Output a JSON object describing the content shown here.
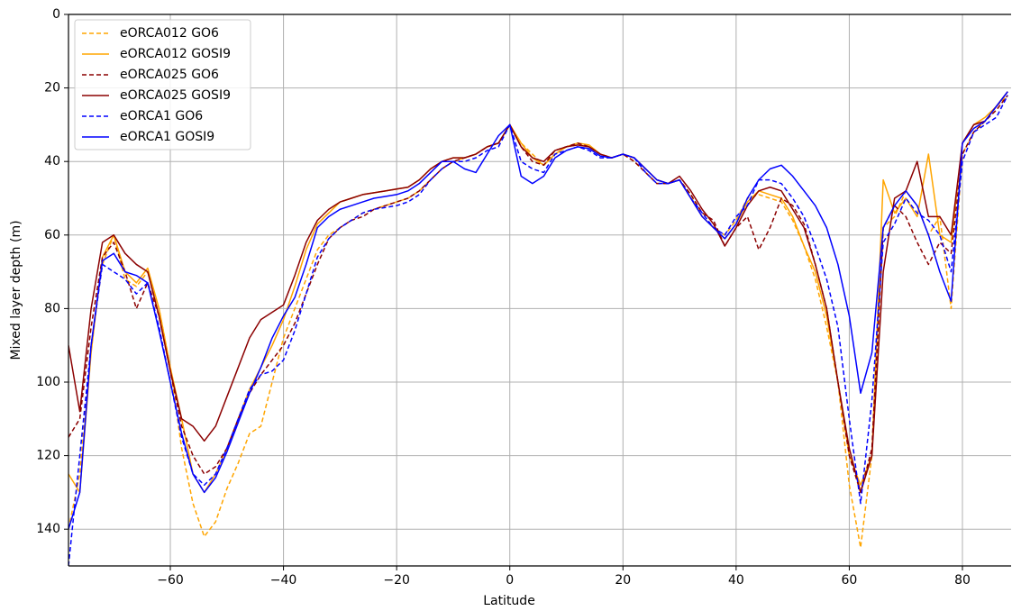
{
  "chart_data": {
    "type": "line",
    "xlabel": "Latitude",
    "ylabel": "Mixed layer depth (m)",
    "x": [
      -78,
      -76,
      -74,
      -72,
      -70,
      -68,
      -66,
      -64,
      -62,
      -60,
      -58,
      -56,
      -54,
      -52,
      -50,
      -48,
      -46,
      -44,
      -42,
      -40,
      -38,
      -36,
      -34,
      -32,
      -30,
      -28,
      -26,
      -24,
      -22,
      -20,
      -18,
      -16,
      -14,
      -12,
      -10,
      -8,
      -6,
      -4,
      -2,
      0,
      2,
      4,
      6,
      8,
      10,
      12,
      14,
      16,
      18,
      20,
      22,
      24,
      26,
      28,
      30,
      32,
      34,
      36,
      38,
      40,
      42,
      44,
      46,
      48,
      50,
      52,
      54,
      56,
      58,
      60,
      62,
      64,
      66,
      68,
      70,
      72,
      74,
      76,
      78,
      80,
      82,
      84,
      86,
      88
    ],
    "series": [
      {
        "name": "eORCA012 GO6",
        "color": "#ffa500",
        "linestyle": "dashed",
        "values": [
          140,
          125,
          90,
          68,
          60,
          72,
          74,
          70,
          80,
          96,
          118,
          133,
          142,
          138,
          129,
          122,
          114,
          112,
          100,
          88,
          80,
          72,
          64,
          60,
          58,
          56,
          54,
          53,
          52,
          51,
          50,
          48,
          45,
          42,
          40,
          39,
          38,
          36,
          35,
          30,
          35,
          38,
          41,
          38,
          36,
          35,
          36,
          38,
          39,
          38,
          40,
          43,
          46,
          46,
          45,
          49,
          55,
          58,
          60,
          56,
          50,
          49,
          50,
          51,
          56,
          63,
          72,
          85,
          100,
          128,
          145,
          120,
          58,
          55,
          48,
          52,
          60,
          55,
          80,
          38,
          32,
          29,
          25,
          22
        ]
      },
      {
        "name": "eORCA012 GOSI9",
        "color": "#ffa500",
        "linestyle": "solid",
        "values": [
          125,
          130,
          92,
          66,
          60,
          70,
          73,
          69,
          80,
          96,
          110,
          125,
          130,
          125,
          118,
          110,
          102,
          96,
          90,
          83,
          74,
          64,
          57,
          54,
          51,
          50,
          49,
          48.5,
          48,
          47.5,
          47,
          45,
          42,
          40,
          39,
          39,
          38,
          36,
          35,
          30,
          35,
          39,
          41,
          38,
          36,
          35,
          35.5,
          38,
          39,
          38,
          39,
          42,
          45,
          46,
          45,
          50,
          55,
          58,
          61,
          57,
          51,
          48,
          49,
          50,
          55,
          63,
          70,
          82,
          100,
          120,
          128,
          120,
          45,
          54,
          50,
          55,
          38,
          60,
          62,
          35,
          30,
          28,
          25,
          21
        ]
      },
      {
        "name": "eORCA025 GO6",
        "color": "#8b0000",
        "linestyle": "dashed",
        "values": [
          115,
          110,
          85,
          66,
          62,
          70,
          80,
          73,
          82,
          97,
          112,
          120,
          125,
          123,
          118,
          110,
          103,
          98,
          94,
          90,
          84,
          76,
          68,
          61,
          58,
          56,
          55,
          53,
          52,
          51,
          50,
          48,
          45,
          42,
          40,
          39,
          38,
          36,
          35,
          30,
          36,
          40,
          41,
          37,
          36,
          35,
          36,
          38,
          39,
          38,
          40,
          43,
          46,
          46,
          45,
          49,
          54,
          56,
          63,
          58,
          55,
          64,
          58,
          50,
          52,
          57,
          68,
          80,
          100,
          120,
          130,
          118,
          58,
          52,
          55,
          62,
          68,
          62,
          65,
          38,
          32,
          29,
          26,
          22
        ]
      },
      {
        "name": "eORCA025 GOSI9",
        "color": "#8b0000",
        "linestyle": "solid",
        "values": [
          90,
          108,
          80,
          62,
          60,
          65,
          68,
          70,
          82,
          97,
          110,
          112,
          116,
          112,
          104,
          96,
          88,
          83,
          81,
          79,
          71,
          62,
          56,
          53,
          51,
          50,
          49,
          48.5,
          48,
          47.5,
          47,
          45,
          42,
          40,
          39,
          39,
          38,
          36,
          35,
          30,
          36,
          39,
          40,
          37,
          36,
          35.5,
          36,
          38,
          39,
          38,
          39,
          42,
          45,
          46,
          44,
          48,
          53,
          57,
          63,
          58,
          52,
          48,
          47,
          48,
          53,
          58,
          68,
          80,
          100,
          118,
          130,
          120,
          70,
          50,
          48,
          40,
          55,
          55,
          60,
          35,
          30,
          29,
          25,
          21
        ]
      },
      {
        "name": "eORCA1 GO6",
        "color": "#0000ff",
        "linestyle": "dashed",
        "values": [
          150,
          120,
          90,
          68,
          70,
          72,
          76,
          73,
          85,
          100,
          115,
          125,
          128,
          125,
          118,
          110,
          102,
          98,
          97,
          94,
          86,
          76,
          66,
          61,
          58,
          56,
          54,
          53,
          52.5,
          52,
          51,
          49,
          45,
          42,
          40,
          40,
          39,
          37,
          36,
          30,
          40,
          42,
          43,
          38,
          37,
          36,
          37,
          39,
          39,
          38,
          39,
          43,
          46,
          46,
          45,
          50,
          54,
          58,
          60,
          55,
          52,
          45,
          45,
          46,
          50,
          55,
          63,
          72,
          85,
          110,
          133,
          105,
          62,
          57,
          50,
          54,
          56,
          60,
          70,
          40,
          32,
          30,
          28,
          22
        ]
      },
      {
        "name": "eORCA1 GOSI9",
        "color": "#0000ff",
        "linestyle": "solid",
        "values": [
          140,
          130,
          90,
          67,
          65,
          70,
          71,
          73,
          86,
          100,
          114,
          125,
          130,
          126,
          119,
          111,
          103,
          96,
          88,
          82,
          77,
          68,
          58,
          55,
          53,
          52,
          51,
          50,
          49.5,
          49,
          48,
          46,
          43,
          40,
          40,
          42,
          43,
          38,
          33,
          30,
          44,
          46,
          44,
          39,
          37,
          36,
          36.5,
          38.5,
          39,
          38,
          39,
          42,
          45,
          46,
          45,
          50,
          55,
          58,
          61,
          57,
          50,
          45,
          42,
          41,
          44,
          48,
          52,
          58,
          68,
          82,
          103,
          92,
          58,
          52,
          48,
          52,
          60,
          70,
          78,
          35,
          31,
          29,
          25,
          21
        ]
      }
    ],
    "xlim": [
      -78,
      88.6
    ],
    "xticks": [
      {
        "value": -60,
        "label": "−60"
      },
      {
        "value": -40,
        "label": "−40"
      },
      {
        "value": -20,
        "label": "−20"
      },
      0,
      20,
      40,
      60,
      80
    ],
    "ylim": [
      150,
      0
    ],
    "yticks": [
      0,
      20,
      40,
      60,
      80,
      100,
      120,
      140
    ],
    "grid": true,
    "legend": "upper left"
  }
}
